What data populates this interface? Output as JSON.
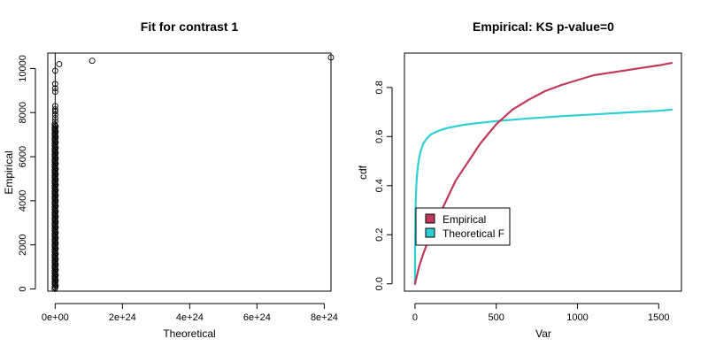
{
  "chart_data": [
    {
      "type": "scatter",
      "title": "Fit for contrast 1",
      "xlabel": "Theoretical",
      "ylabel": "Empirical",
      "xlim": [
        -2.2e+23,
        8.2e+24
      ],
      "ylim": [
        -100,
        10700
      ],
      "xticks": [
        0,
        2e+24,
        4e+24,
        6e+24,
        8e+24
      ],
      "xtick_labels": [
        "0e+00",
        "2e+24",
        "4e+24",
        "6e+24",
        "8e+24"
      ],
      "yticks": [
        0,
        2000,
        4000,
        6000,
        8000,
        10000
      ],
      "ytick_labels": [
        "0",
        "2000",
        "4000",
        "6000",
        "8000",
        "10000"
      ],
      "vertical_line_x": 0,
      "cluster": {
        "x": 0,
        "y_from": 0,
        "y_to": 7500
      },
      "points": [
        {
          "x": 0,
          "y": 7600
        },
        {
          "x": 0,
          "y": 7750
        },
        {
          "x": 0,
          "y": 7900
        },
        {
          "x": 0,
          "y": 8050
        },
        {
          "x": 0,
          "y": 8150
        },
        {
          "x": 0,
          "y": 8300
        },
        {
          "x": 0,
          "y": 8950
        },
        {
          "x": 0,
          "y": 9100
        },
        {
          "x": 0,
          "y": 9300
        },
        {
          "x": 0,
          "y": 9900
        },
        {
          "x": 1.2e+23,
          "y": 10200
        },
        {
          "x": 1.1e+24,
          "y": 10350
        },
        {
          "x": 8.2e+24,
          "y": 10500
        }
      ],
      "grid": false,
      "box": true
    },
    {
      "type": "line",
      "title": "Empirical: KS p-value=0",
      "xlabel": "Var",
      "ylabel": "cdf",
      "xlim": [
        -65,
        1640
      ],
      "ylim": [
        -0.03,
        0.94
      ],
      "xticks": [
        0,
        500,
        1000,
        1500
      ],
      "xtick_labels": [
        "0",
        "500",
        "1000",
        "1500"
      ],
      "yticks": [
        0.0,
        0.2,
        0.4,
        0.6,
        0.8
      ],
      "ytick_labels": [
        "0.0",
        "0.2",
        "0.4",
        "0.6",
        "0.8"
      ],
      "series": [
        {
          "name": "Empirical",
          "color": "#c0395a",
          "x": [
            0,
            25,
            50,
            100,
            150,
            200,
            250,
            300,
            350,
            400,
            450,
            500,
            550,
            600,
            700,
            800,
            900,
            1000,
            1100,
            1200,
            1300,
            1400,
            1500,
            1580
          ],
          "y": [
            0.0,
            0.07,
            0.12,
            0.21,
            0.28,
            0.35,
            0.42,
            0.47,
            0.52,
            0.57,
            0.61,
            0.65,
            0.68,
            0.71,
            0.75,
            0.785,
            0.81,
            0.83,
            0.85,
            0.86,
            0.87,
            0.88,
            0.89,
            0.9
          ]
        },
        {
          "name": "Theoretical F",
          "color": "#2ecfd4",
          "x": [
            0,
            1,
            3,
            5,
            8,
            12,
            18,
            25,
            35,
            50,
            70,
            100,
            150,
            200,
            300,
            400,
            500,
            700,
            900,
            1100,
            1300,
            1500,
            1580
          ],
          "y": [
            0.0,
            0.2,
            0.3,
            0.35,
            0.4,
            0.44,
            0.48,
            0.51,
            0.54,
            0.57,
            0.59,
            0.61,
            0.625,
            0.635,
            0.648,
            0.656,
            0.663,
            0.674,
            0.683,
            0.69,
            0.698,
            0.705,
            0.71
          ]
        }
      ],
      "legend": {
        "placement": "left-middle",
        "entries": [
          "Empirical",
          "Theoretical F"
        ]
      },
      "grid": false,
      "box": true
    }
  ]
}
